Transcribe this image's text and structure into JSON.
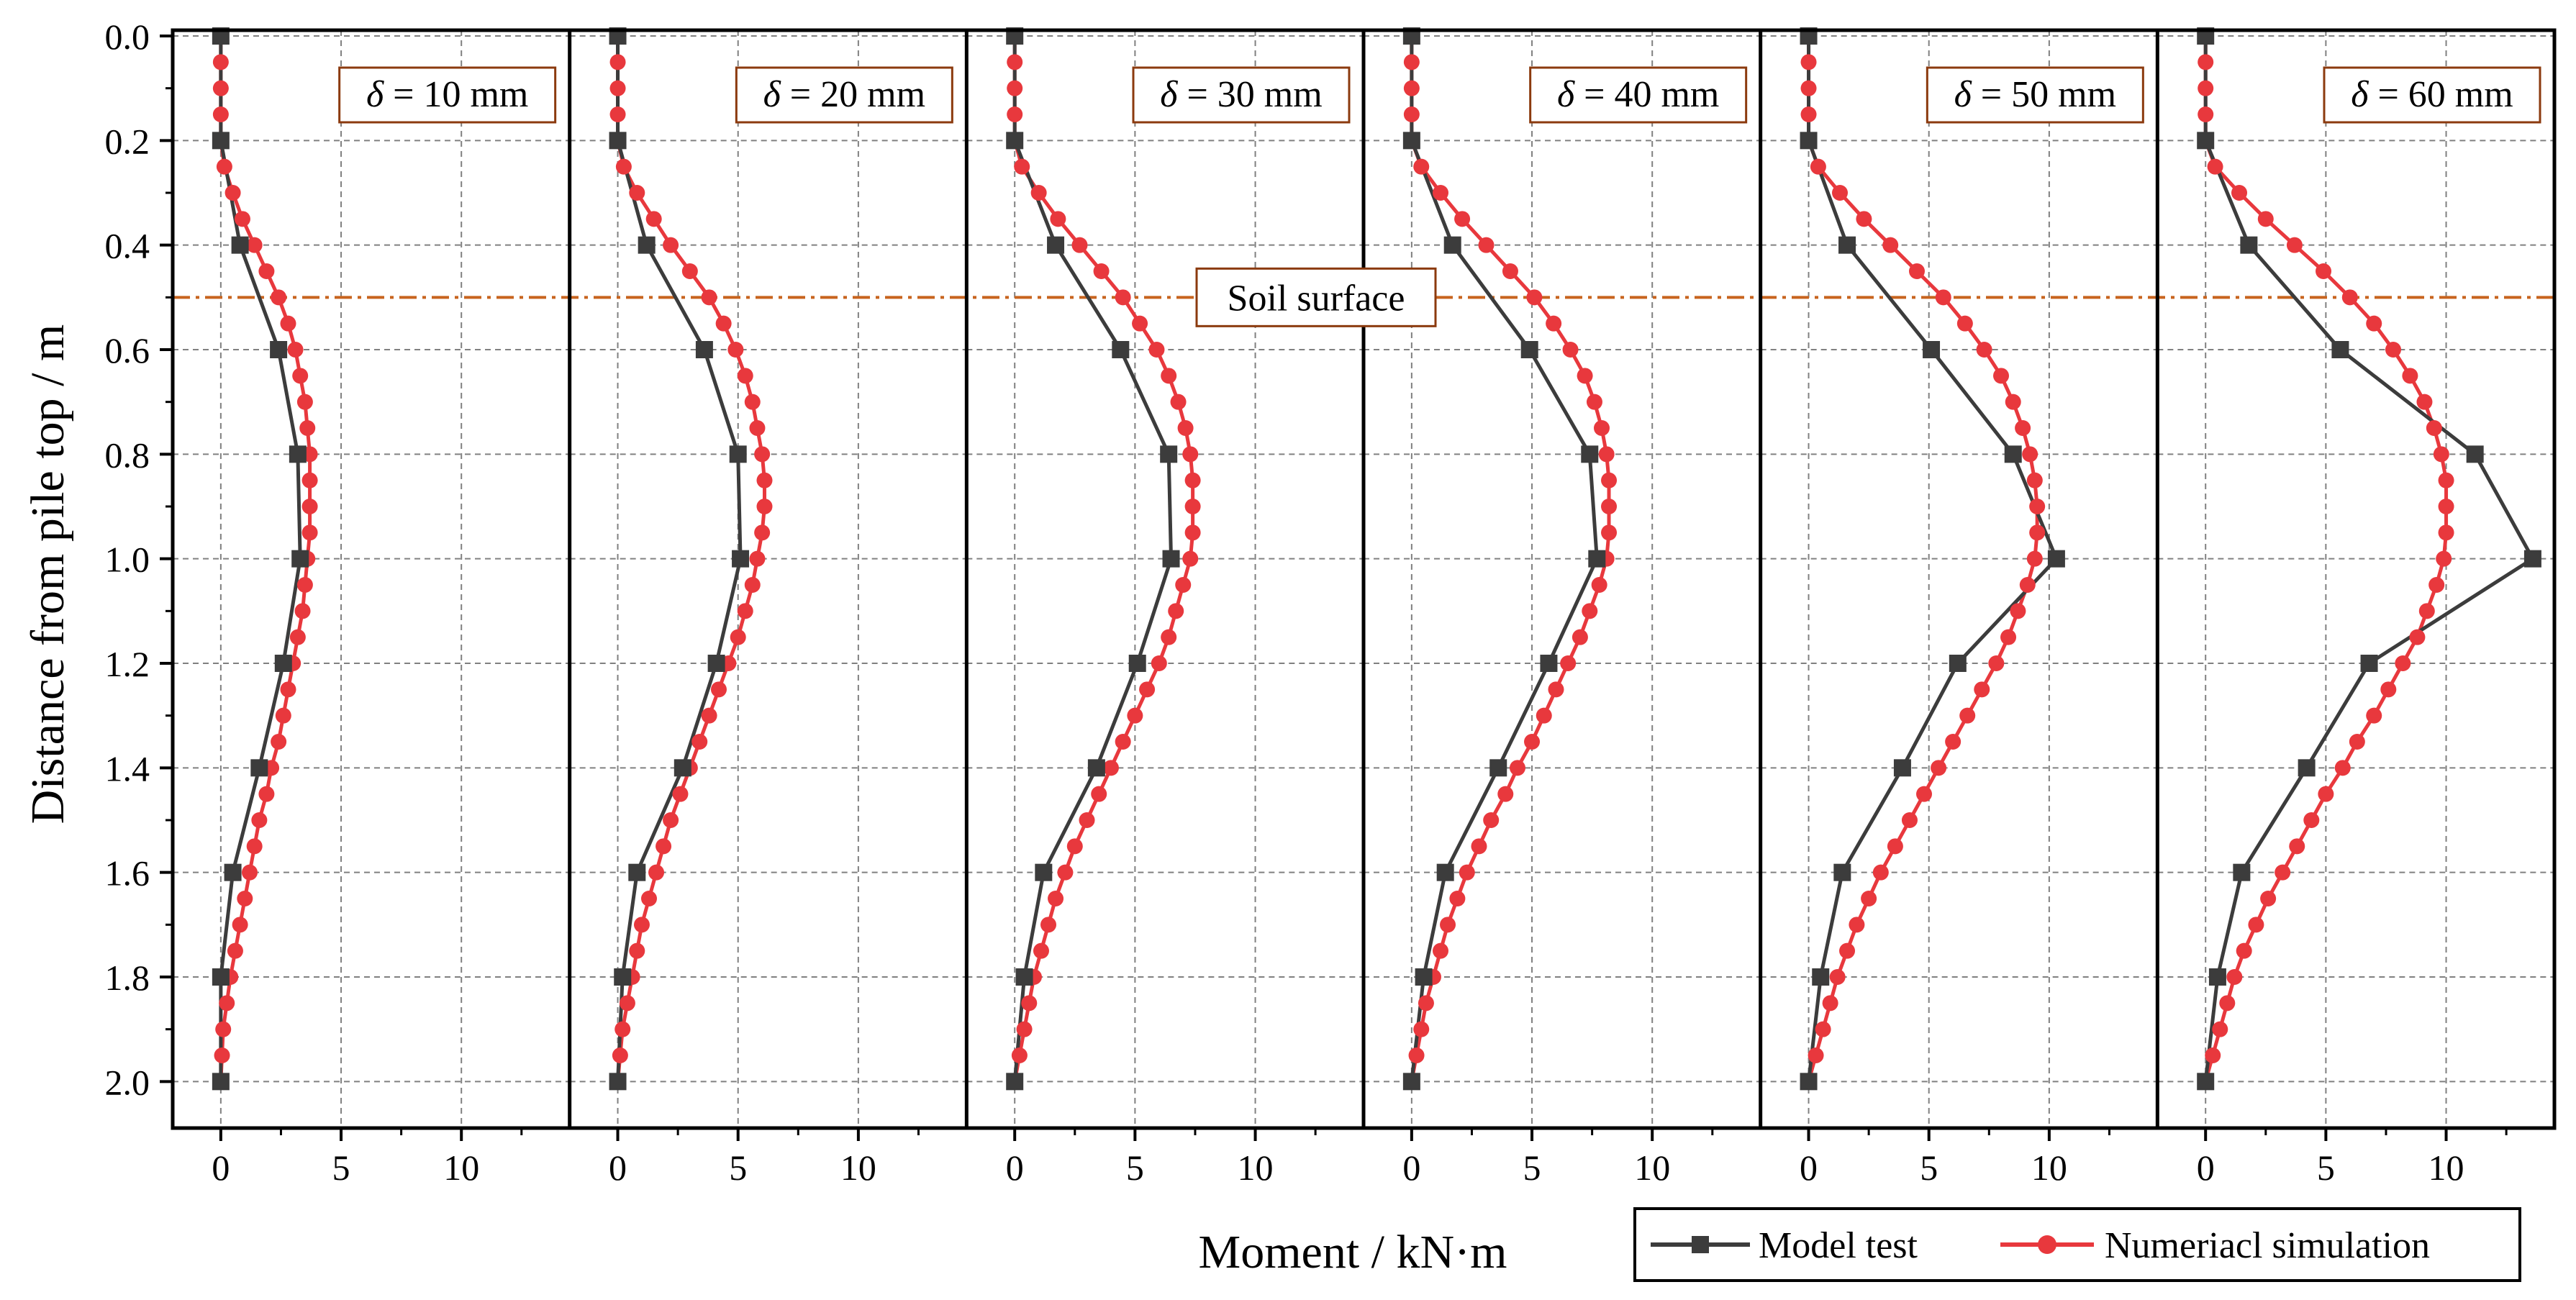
{
  "chart_data": {
    "type": "line",
    "y_axis": {
      "label": "Distance from pile top  /  m",
      "ylim": [
        0.0,
        2.1
      ],
      "ticks": [
        0.0,
        0.2,
        0.4,
        0.6,
        0.8,
        1.0,
        1.2,
        1.4,
        1.6,
        1.8,
        2.0
      ],
      "tick_labels": [
        "0.0",
        "0.2",
        "0.4",
        "0.6",
        "0.8",
        "1.0",
        "1.2",
        "1.4",
        "1.6",
        "1.8",
        "2.0"
      ],
      "inverted": true
    },
    "x_axis": {
      "label": "Moment  /  kN·m",
      "xlim": [
        -2,
        14.5
      ],
      "ticks": [
        0,
        5,
        10
      ],
      "tick_labels": [
        "0",
        "5",
        "10"
      ]
    },
    "grid": true,
    "reference_line": {
      "label": "Soil surface",
      "y": 0.5,
      "color": "#c8641e"
    },
    "legend": {
      "placement": "bottom-right",
      "entries": [
        {
          "name": "Model test",
          "color": "#3c3c3c",
          "marker": "square"
        },
        {
          "name": "Numeriacl simulation",
          "color": "#e8383d",
          "marker": "circle"
        }
      ]
    },
    "sim_depths": [
      0.0,
      0.05,
      0.1,
      0.15,
      0.2,
      0.25,
      0.3,
      0.35,
      0.4,
      0.45,
      0.5,
      0.55,
      0.6,
      0.65,
      0.7,
      0.75,
      0.8,
      0.85,
      0.9,
      0.95,
      1.0,
      1.05,
      1.1,
      1.15,
      1.2,
      1.25,
      1.3,
      1.35,
      1.4,
      1.45,
      1.5,
      1.55,
      1.6,
      1.65,
      1.7,
      1.75,
      1.8,
      1.85,
      1.9,
      1.95,
      2.0
    ],
    "test_depths": [
      0.0,
      0.2,
      0.4,
      0.6,
      0.8,
      1.0,
      1.2,
      1.4,
      1.6,
      1.8,
      2.0
    ],
    "panels": [
      {
        "label_prefix": "δ",
        "label_value": " = 10 mm",
        "model_test": [
          0,
          0,
          0.8,
          2.4,
          3.2,
          3.3,
          2.6,
          1.6,
          0.5,
          0,
          0
        ],
        "numerical_simulation": [
          0,
          0,
          0,
          0,
          0,
          0.15,
          0.5,
          0.9,
          1.4,
          1.9,
          2.4,
          2.8,
          3.1,
          3.3,
          3.5,
          3.6,
          3.7,
          3.7,
          3.7,
          3.7,
          3.6,
          3.5,
          3.4,
          3.2,
          3.0,
          2.8,
          2.6,
          2.4,
          2.1,
          1.9,
          1.6,
          1.4,
          1.2,
          1.0,
          0.8,
          0.6,
          0.4,
          0.25,
          0.1,
          0.05,
          0
        ]
      },
      {
        "label_prefix": "δ",
        "label_value": " = 20 mm",
        "model_test": [
          0,
          0,
          1.2,
          3.6,
          5.0,
          5.1,
          4.1,
          2.7,
          0.8,
          0.2,
          0
        ],
        "numerical_simulation": [
          0,
          0,
          0,
          0,
          0,
          0.25,
          0.8,
          1.5,
          2.2,
          3.0,
          3.8,
          4.4,
          4.9,
          5.3,
          5.6,
          5.8,
          6.0,
          6.1,
          6.1,
          6.0,
          5.8,
          5.6,
          5.3,
          5.0,
          4.6,
          4.2,
          3.8,
          3.4,
          3.0,
          2.6,
          2.2,
          1.9,
          1.6,
          1.3,
          1.0,
          0.8,
          0.6,
          0.4,
          0.2,
          0.1,
          0
        ]
      },
      {
        "label_prefix": "δ",
        "label_value": " = 30 mm",
        "model_test": [
          0,
          0,
          1.7,
          4.4,
          6.4,
          6.5,
          5.1,
          3.4,
          1.2,
          0.4,
          0
        ],
        "numerical_simulation": [
          0,
          0,
          0,
          0,
          0,
          0.3,
          1.0,
          1.8,
          2.7,
          3.6,
          4.5,
          5.2,
          5.9,
          6.4,
          6.8,
          7.1,
          7.3,
          7.4,
          7.4,
          7.4,
          7.3,
          7.0,
          6.7,
          6.4,
          6.0,
          5.5,
          5.0,
          4.5,
          4.0,
          3.5,
          3.0,
          2.5,
          2.1,
          1.7,
          1.4,
          1.1,
          0.8,
          0.6,
          0.4,
          0.2,
          0
        ]
      },
      {
        "label_prefix": "δ",
        "label_value": " = 40 mm",
        "model_test": [
          0,
          0,
          1.7,
          4.9,
          7.4,
          7.7,
          5.7,
          3.6,
          1.4,
          0.5,
          0
        ],
        "numerical_simulation": [
          0,
          0,
          0,
          0,
          0,
          0.4,
          1.2,
          2.1,
          3.1,
          4.1,
          5.1,
          5.9,
          6.6,
          7.2,
          7.6,
          7.9,
          8.1,
          8.2,
          8.2,
          8.2,
          8.1,
          7.8,
          7.4,
          7.0,
          6.5,
          6.0,
          5.5,
          5.0,
          4.4,
          3.9,
          3.3,
          2.8,
          2.3,
          1.9,
          1.5,
          1.2,
          0.9,
          0.6,
          0.4,
          0.2,
          0
        ]
      },
      {
        "label_prefix": "δ",
        "label_value": " = 50 mm",
        "model_test": [
          0,
          0,
          1.6,
          5.1,
          8.5,
          10.3,
          6.2,
          3.9,
          1.4,
          0.5,
          0
        ],
        "numerical_simulation": [
          0,
          0,
          0,
          0,
          0,
          0.4,
          1.3,
          2.3,
          3.4,
          4.5,
          5.6,
          6.5,
          7.3,
          8.0,
          8.5,
          8.9,
          9.2,
          9.4,
          9.5,
          9.5,
          9.4,
          9.1,
          8.7,
          8.3,
          7.8,
          7.2,
          6.6,
          6.0,
          5.4,
          4.8,
          4.2,
          3.6,
          3.0,
          2.5,
          2.0,
          1.6,
          1.2,
          0.9,
          0.6,
          0.3,
          0
        ]
      },
      {
        "label_prefix": "δ",
        "label_value": " = 60 mm",
        "model_test": [
          0,
          0,
          1.8,
          5.6,
          11.2,
          13.6,
          6.8,
          4.2,
          1.5,
          0.5,
          0
        ],
        "numerical_simulation": [
          0,
          0,
          0,
          0,
          0,
          0.4,
          1.4,
          2.5,
          3.7,
          4.9,
          6.0,
          7.0,
          7.8,
          8.5,
          9.1,
          9.5,
          9.8,
          10.0,
          10.0,
          10.0,
          9.9,
          9.6,
          9.2,
          8.8,
          8.2,
          7.6,
          7.0,
          6.3,
          5.7,
          5.0,
          4.4,
          3.8,
          3.2,
          2.6,
          2.1,
          1.6,
          1.2,
          0.9,
          0.6,
          0.3,
          0
        ]
      }
    ]
  }
}
